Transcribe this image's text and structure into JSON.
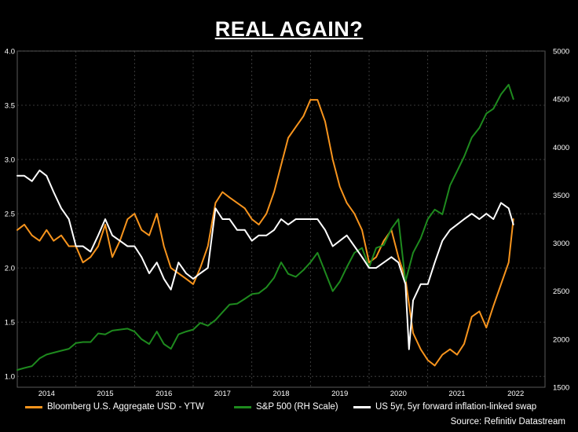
{
  "chart_data": {
    "type": "line",
    "title": "REAL AGAIN?",
    "source": "Source: Refinitiv Datastream",
    "x_ticks": [
      "2014",
      "2015",
      "2016",
      "2017",
      "2018",
      "2019",
      "2020",
      "2021",
      "2022"
    ],
    "xlim": [
      2013.5,
      2022.5
    ],
    "left_axis": {
      "ylim": [
        0.9,
        4.0
      ],
      "ticks": [
        "1.0",
        "1.5",
        "2.0",
        "2.5",
        "3.0",
        "3.5",
        "4.0"
      ]
    },
    "right_axis": {
      "ylim": [
        1500,
        5000
      ],
      "ticks": [
        "1500",
        "2000",
        "2500",
        "3000",
        "3500",
        "4000",
        "4500",
        "5000"
      ]
    },
    "grid": true,
    "legend_position": "bottom",
    "series": [
      {
        "name": "Bloomberg U.S. Aggregate USD - YTW",
        "axis": "left",
        "color": "#f7941d",
        "x": [
          2013.5,
          2013.62,
          2013.75,
          2013.88,
          2014.0,
          2014.12,
          2014.25,
          2014.38,
          2014.5,
          2014.62,
          2014.75,
          2014.88,
          2015.0,
          2015.12,
          2015.25,
          2015.38,
          2015.5,
          2015.62,
          2015.75,
          2015.88,
          2016.0,
          2016.12,
          2016.25,
          2016.38,
          2016.5,
          2016.62,
          2016.75,
          2016.88,
          2017.0,
          2017.12,
          2017.25,
          2017.38,
          2017.5,
          2017.62,
          2017.75,
          2017.88,
          2018.0,
          2018.12,
          2018.25,
          2018.38,
          2018.5,
          2018.62,
          2018.75,
          2018.88,
          2019.0,
          2019.12,
          2019.25,
          2019.38,
          2019.5,
          2019.62,
          2019.75,
          2019.88,
          2020.0,
          2020.12,
          2020.25,
          2020.38,
          2020.5,
          2020.62,
          2020.75,
          2020.88,
          2021.0,
          2021.12,
          2021.25,
          2021.38,
          2021.5,
          2021.62,
          2021.75,
          2021.88,
          2021.96
        ],
        "values": [
          2.35,
          2.4,
          2.3,
          2.25,
          2.35,
          2.25,
          2.3,
          2.2,
          2.2,
          2.05,
          2.1,
          2.2,
          2.4,
          2.1,
          2.25,
          2.45,
          2.5,
          2.35,
          2.3,
          2.5,
          2.2,
          2.0,
          1.95,
          1.9,
          1.85,
          2.0,
          2.2,
          2.6,
          2.7,
          2.65,
          2.6,
          2.55,
          2.45,
          2.4,
          2.5,
          2.7,
          2.95,
          3.2,
          3.3,
          3.4,
          3.55,
          3.55,
          3.35,
          3.0,
          2.75,
          2.6,
          2.5,
          2.35,
          2.05,
          2.1,
          2.25,
          2.35,
          2.1,
          1.9,
          1.4,
          1.25,
          1.15,
          1.1,
          1.2,
          1.25,
          1.2,
          1.3,
          1.55,
          1.6,
          1.45,
          1.65,
          1.85,
          2.05,
          2.45
        ]
      },
      {
        "name": "S&P 500 (RH Scale)",
        "axis": "right",
        "color": "#1e8a1e",
        "x": [
          2013.5,
          2013.62,
          2013.75,
          2013.88,
          2014.0,
          2014.12,
          2014.25,
          2014.38,
          2014.5,
          2014.62,
          2014.75,
          2014.88,
          2015.0,
          2015.12,
          2015.25,
          2015.38,
          2015.5,
          2015.62,
          2015.75,
          2015.88,
          2016.0,
          2016.12,
          2016.25,
          2016.38,
          2016.5,
          2016.62,
          2016.75,
          2016.88,
          2017.0,
          2017.12,
          2017.25,
          2017.38,
          2017.5,
          2017.62,
          2017.75,
          2017.88,
          2018.0,
          2018.12,
          2018.25,
          2018.38,
          2018.5,
          2018.62,
          2018.75,
          2018.88,
          2019.0,
          2019.12,
          2019.25,
          2019.38,
          2019.5,
          2019.62,
          2019.75,
          2019.88,
          2020.0,
          2020.12,
          2020.25,
          2020.38,
          2020.5,
          2020.62,
          2020.75,
          2020.88,
          2021.0,
          2021.12,
          2021.25,
          2021.38,
          2021.5,
          2021.62,
          2021.75,
          2021.88,
          2021.96
        ],
        "values": [
          1680,
          1700,
          1720,
          1800,
          1840,
          1860,
          1880,
          1900,
          1960,
          1970,
          1970,
          2060,
          2050,
          2090,
          2100,
          2110,
          2080,
          2000,
          1950,
          2080,
          1950,
          1900,
          2050,
          2080,
          2100,
          2170,
          2140,
          2200,
          2280,
          2360,
          2370,
          2420,
          2470,
          2480,
          2540,
          2640,
          2800,
          2680,
          2650,
          2720,
          2800,
          2900,
          2700,
          2500,
          2600,
          2750,
          2900,
          2950,
          2750,
          2950,
          2980,
          3150,
          3250,
          2600,
          2900,
          3050,
          3250,
          3350,
          3300,
          3600,
          3750,
          3900,
          4100,
          4200,
          4350,
          4400,
          4550,
          4650,
          4500
        ]
      },
      {
        "name": "US 5yr, 5yr forward inflation-linked swap",
        "axis": "left",
        "color": "#ffffff",
        "x": [
          2013.5,
          2013.62,
          2013.75,
          2013.88,
          2014.0,
          2014.12,
          2014.25,
          2014.38,
          2014.5,
          2014.62,
          2014.75,
          2014.88,
          2015.0,
          2015.12,
          2015.25,
          2015.38,
          2015.5,
          2015.62,
          2015.75,
          2015.88,
          2016.0,
          2016.12,
          2016.25,
          2016.38,
          2016.5,
          2016.62,
          2016.75,
          2016.88,
          2017.0,
          2017.12,
          2017.25,
          2017.38,
          2017.5,
          2017.62,
          2017.75,
          2017.88,
          2018.0,
          2018.12,
          2018.25,
          2018.38,
          2018.5,
          2018.62,
          2018.75,
          2018.88,
          2019.0,
          2019.12,
          2019.25,
          2019.38,
          2019.5,
          2019.62,
          2019.75,
          2019.88,
          2020.0,
          2020.12,
          2020.18,
          2020.25,
          2020.38,
          2020.5,
          2020.62,
          2020.75,
          2020.88,
          2021.0,
          2021.12,
          2021.25,
          2021.38,
          2021.5,
          2021.62,
          2021.75,
          2021.88,
          2021.96
        ],
        "values": [
          2.85,
          2.85,
          2.8,
          2.9,
          2.85,
          2.7,
          2.55,
          2.45,
          2.2,
          2.2,
          2.15,
          2.3,
          2.45,
          2.3,
          2.25,
          2.2,
          2.2,
          2.1,
          1.95,
          2.05,
          1.9,
          1.8,
          2.05,
          1.95,
          1.9,
          1.95,
          2.0,
          2.55,
          2.45,
          2.45,
          2.35,
          2.35,
          2.25,
          2.3,
          2.3,
          2.35,
          2.45,
          2.4,
          2.45,
          2.45,
          2.45,
          2.45,
          2.35,
          2.2,
          2.25,
          2.3,
          2.2,
          2.1,
          2.0,
          2.0,
          2.05,
          2.1,
          2.05,
          1.85,
          1.25,
          1.7,
          1.85,
          1.85,
          2.05,
          2.25,
          2.35,
          2.4,
          2.45,
          2.5,
          2.45,
          2.5,
          2.45,
          2.6,
          2.55,
          2.4
        ]
      }
    ]
  }
}
